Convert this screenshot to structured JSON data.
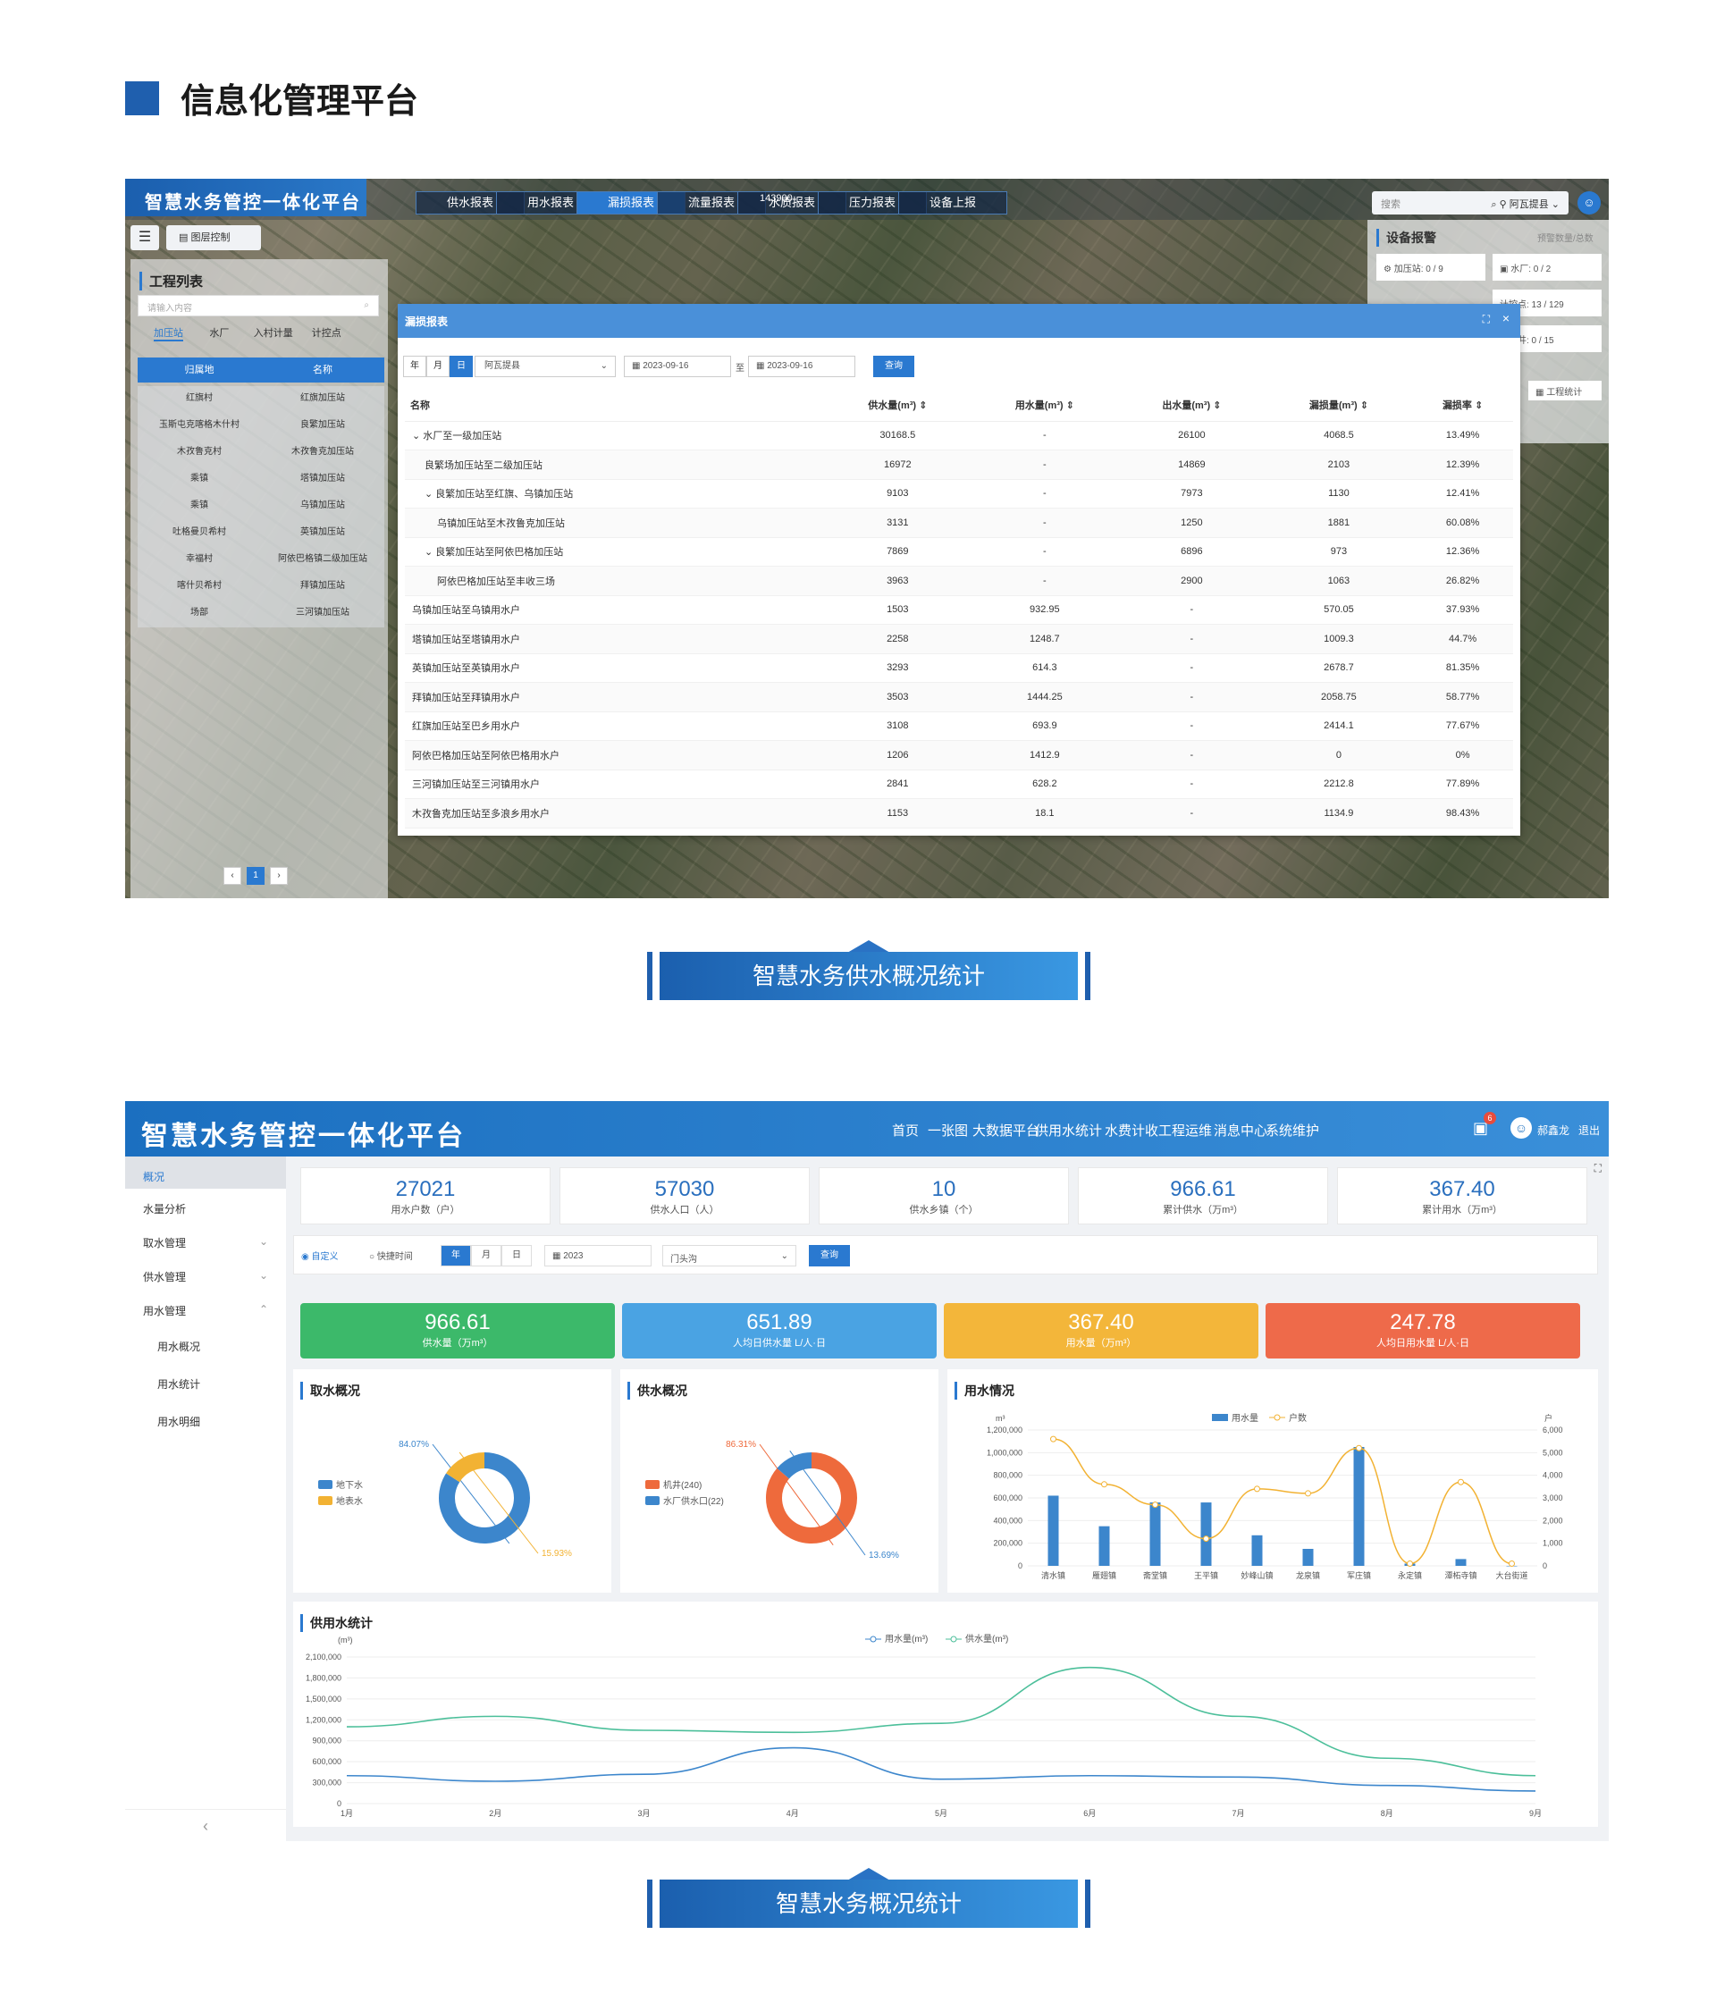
{
  "section": {
    "title": "信息化管理平台"
  },
  "shot1": {
    "app_title": "智慧水务管控一体化平台",
    "tabs": [
      "供水报表",
      "用水报表",
      "漏损报表",
      "流量报表",
      "水质报表",
      "压力报表",
      "设备上报"
    ],
    "layer_btn": "图层控制",
    "left_title": "工程列表",
    "left_search_placeholder": "请输入内容",
    "left_tabs": [
      "加压站",
      "水厂",
      "入村计量",
      "计控点"
    ],
    "left_head": [
      "归属地",
      "名称"
    ],
    "left_rows": [
      [
        "红旗村",
        "红旗加压站"
      ],
      [
        "玉斯屯克喀格木什村",
        "良繁加压站"
      ],
      [
        "木孜鲁克村",
        "木孜鲁克加压站"
      ],
      [
        "乘镇",
        "塔镇加压站"
      ],
      [
        "乘镇",
        "乌镇加压站"
      ],
      [
        "吐格曼贝希村",
        "英镇加压站"
      ],
      [
        "幸福村",
        "阿依巴格镇二级加压站"
      ],
      [
        "喀什贝希村",
        "拜镇加压站"
      ],
      [
        "场部",
        "三河镇加压站"
      ]
    ],
    "page": "1",
    "search_placeholder": "搜索",
    "county": "阿瓦提县",
    "right_title": "设备报警",
    "right_sub": "预警数量/总数",
    "right_items": [
      "加压站: 0 / 9",
      "水厂: 0 / 2",
      "计控点: 13 / 129",
      "水源井: 0 / 15"
    ],
    "right_btn": "工程统计",
    "coord": "143900",
    "modal": {
      "title": "漏损报表",
      "btns": [
        "年",
        "月",
        "日"
      ],
      "county": "阿瓦提县",
      "date_from": "2023-09-16",
      "to": "至",
      "date_to": "2023-09-16",
      "query": "查询",
      "headers": [
        "名称",
        "供水量(m³) ⇕",
        "用水量(m³) ⇕",
        "出水量(m³) ⇕",
        "漏损量(m³) ⇕",
        "漏损率 ⇕"
      ],
      "rows": [
        [
          "⌄ 水厂至一级加压站",
          "30168.5",
          "-",
          "26100",
          "4068.5",
          "13.49%"
        ],
        [
          "良繁场加压站至二级加压站",
          "16972",
          "-",
          "14869",
          "2103",
          "12.39%"
        ],
        [
          "⌄ 良繁加压站至红旗、乌镇加压站",
          "9103",
          "-",
          "7973",
          "1130",
          "12.41%"
        ],
        [
          "乌镇加压站至木孜鲁克加压站",
          "3131",
          "-",
          "1250",
          "1881",
          "60.08%"
        ],
        [
          "⌄ 良繁加压站至阿依巴格加压站",
          "7869",
          "-",
          "6896",
          "973",
          "12.36%"
        ],
        [
          "阿依巴格加压站至丰收三场",
          "3963",
          "-",
          "2900",
          "1063",
          "26.82%"
        ],
        [
          "乌镇加压站至乌镇用水户",
          "1503",
          "932.95",
          "-",
          "570.05",
          "37.93%"
        ],
        [
          "塔镇加压站至塔镇用水户",
          "2258",
          "1248.7",
          "-",
          "1009.3",
          "44.7%"
        ],
        [
          "英镇加压站至英镇用水户",
          "3293",
          "614.3",
          "-",
          "2678.7",
          "81.35%"
        ],
        [
          "拜镇加压站至拜镇用水户",
          "3503",
          "1444.25",
          "-",
          "2058.75",
          "58.77%"
        ],
        [
          "红旗加压站至巴乡用水户",
          "3108",
          "693.9",
          "-",
          "2414.1",
          "77.67%"
        ],
        [
          "阿依巴格加压站至阿依巴格用水户",
          "1206",
          "1412.9",
          "-",
          "0",
          "0%"
        ],
        [
          "三河镇加压站至三河镇用水户",
          "2841",
          "628.2",
          "-",
          "2212.8",
          "77.89%"
        ],
        [
          "木孜鲁克加压站至多浪乡用水户",
          "1153",
          "18.1",
          "-",
          "1134.9",
          "98.43%"
        ]
      ]
    }
  },
  "banner1": "智慧水务供水概况统计",
  "banner2": "智慧水务概况统计",
  "shot2": {
    "app_title": "智慧水务管控一体化平台",
    "nav": [
      "首页",
      "一张图",
      "大数据平台",
      "供用水统计",
      "水费计收",
      "工程运维",
      "消息中心",
      "系统维护"
    ],
    "badge": "6",
    "user": "郝鑫龙",
    "logout": "退出",
    "side": [
      "概况",
      "水量分析",
      "取水管理",
      "供水管理",
      "用水管理",
      "用水概况",
      "用水统计",
      "用水明细"
    ],
    "stats": [
      {
        "v": "27021",
        "l": "用水户数（户）"
      },
      {
        "v": "57030",
        "l": "供水人口（人）"
      },
      {
        "v": "10",
        "l": "供水乡镇（个）"
      },
      {
        "v": "966.61",
        "l": "累计供水（万m³）"
      },
      {
        "v": "367.40",
        "l": "累计用水（万m³）"
      }
    ],
    "filter": {
      "radio1": "自定义",
      "radio2": "快捷时间",
      "btns": [
        "年",
        "月",
        "日"
      ],
      "year": "2023",
      "site": "门头沟",
      "query": "查询"
    },
    "cards": [
      {
        "v": "966.61",
        "l": "供水量（万m³）",
        "color": "#3cb96a"
      },
      {
        "v": "651.89",
        "l": "人均日供水量 L/人·日",
        "color": "#4aa3e3"
      },
      {
        "v": "367.40",
        "l": "用水量（万m³）",
        "color": "#f3b63a"
      },
      {
        "v": "247.78",
        "l": "人均日用水量 L/人·日",
        "color": "#ee6a4a"
      }
    ],
    "intake_title": "取水概况",
    "supply_title": "供水概况",
    "use_title": "用水情况",
    "stat_title": "供用水统计",
    "chart_data": [
      {
        "type": "pie",
        "labels": [
          "地下水",
          "地表水"
        ],
        "values": [
          84.07,
          15.93
        ],
        "value_labels": [
          "84.07%",
          "15.93%"
        ],
        "colors": [
          "#3c86cc",
          "#f2b233"
        ]
      },
      {
        "type": "pie",
        "labels": [
          "机井(240)",
          "水厂供水口(22)"
        ],
        "values": [
          86.31,
          13.69
        ],
        "value_labels": [
          "86.31%",
          "13.69%"
        ],
        "colors": [
          "#ee6a3c",
          "#3c86cc"
        ]
      },
      {
        "type": "bar",
        "categories": [
          "清水镇",
          "雁翅镇",
          "斋堂镇",
          "王平镇",
          "妙峰山镇",
          "龙泉镇",
          "军庄镇",
          "永定镇",
          "潭柘寺镇",
          "大台街道"
        ],
        "series": [
          {
            "name": "用水量",
            "values": [
              620000,
              350000,
              560000,
              560000,
              270000,
              150000,
              1050000,
              20000,
              60000,
              0
            ]
          },
          {
            "name": "户数",
            "values": [
              5600,
              3600,
              2700,
              1200,
              3400,
              3200,
              5200,
              100,
              3700,
              100
            ]
          }
        ],
        "ylabel_left": "m³",
        "ylabel_right": "户",
        "ylim_left": [
          0,
          1200000
        ],
        "ylim_right": [
          0,
          6000
        ],
        "yticks_left": [
          "0",
          "200,000",
          "400,000",
          "600,000",
          "800,000",
          "1,000,000",
          "1,200,000"
        ],
        "yticks_right": [
          "0",
          "1,000",
          "2,000",
          "3,000",
          "4,000",
          "5,000",
          "6,000"
        ]
      },
      {
        "type": "line",
        "categories": [
          "1月",
          "2月",
          "3月",
          "4月",
          "5月",
          "6月",
          "7月",
          "8月",
          "9月"
        ],
        "series": [
          {
            "name": "用水量(m³)",
            "values": [
              400000,
              320000,
              420000,
              800000,
              350000,
              400000,
              380000,
              260000,
              180000
            ]
          },
          {
            "name": "供水量(m³)",
            "values": [
              1100000,
              1250000,
              1050000,
              1020000,
              1150000,
              1950000,
              1250000,
              650000,
              400000
            ]
          }
        ],
        "ylabel": "(m³)",
        "ylim": [
          0,
          2100000
        ],
        "yticks": [
          "0",
          "300,000",
          "600,000",
          "900,000",
          "1,200,000",
          "1,500,000",
          "1,800,000",
          "2,100,000"
        ],
        "colors": [
          "#3c86cc",
          "#4cbf9a"
        ]
      }
    ]
  }
}
